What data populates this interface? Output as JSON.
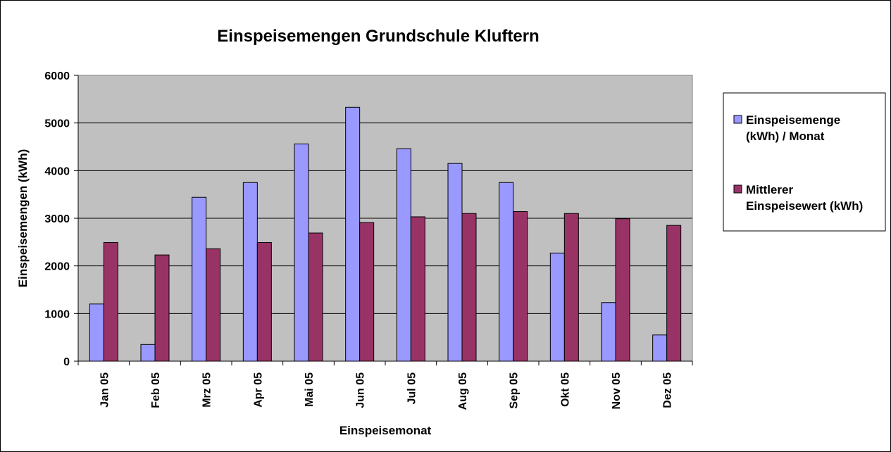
{
  "chart_data": {
    "type": "bar",
    "title": "Einspeisemengen Grundschule Kluftern",
    "xlabel": "Einspeisemonat",
    "ylabel": "Einspeisemengen (kWh)",
    "ylim": [
      0,
      6000
    ],
    "yticks": [
      0,
      1000,
      2000,
      3000,
      4000,
      5000,
      6000
    ],
    "grid": true,
    "legend_position": "right",
    "plot_background": "#C0C0C0",
    "categories": [
      "Jan 05",
      "Feb 05",
      "Mrz 05",
      "Apr 05",
      "Mai 05",
      "Jun 05",
      "Jul 05",
      "Aug 05",
      "Sep 05",
      "Okt 05",
      "Nov 05",
      "Dez 05"
    ],
    "series": [
      {
        "name": "Einspeisemenge (kWh) / Monat",
        "legend_lines": [
          "Einspeisemenge",
          "(kWh) / Monat"
        ],
        "color": "#9999FF",
        "values": [
          1200,
          350,
          3440,
          3750,
          4560,
          5330,
          4460,
          4150,
          3750,
          2270,
          1230,
          550
        ]
      },
      {
        "name": "Mittlerer Einspeisewert (kWh)",
        "legend_lines": [
          "Mittlerer",
          "Einspeisewert (kWh)"
        ],
        "color": "#993366",
        "values": [
          2490,
          2230,
          2360,
          2490,
          2690,
          2910,
          3030,
          3100,
          3140,
          3100,
          2990,
          2850
        ]
      }
    ]
  }
}
